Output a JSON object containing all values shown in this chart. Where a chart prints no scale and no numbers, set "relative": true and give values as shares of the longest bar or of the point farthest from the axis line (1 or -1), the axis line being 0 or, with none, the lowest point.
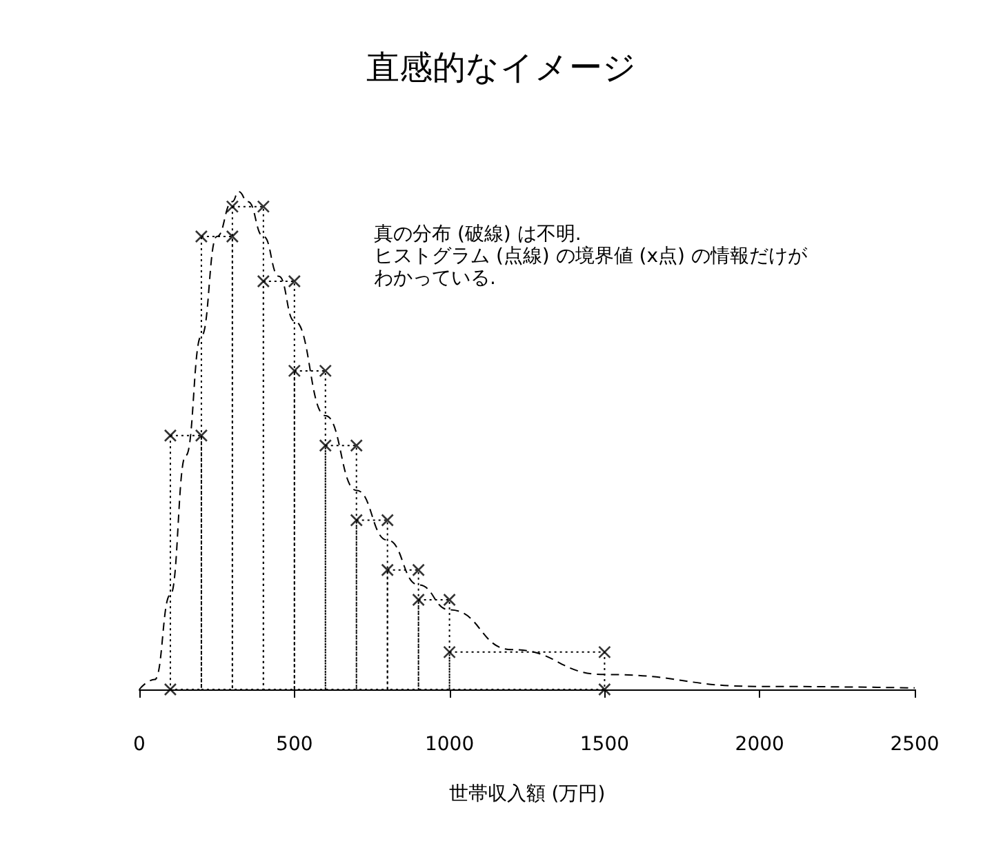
{
  "chart_data": {
    "type": "histogram",
    "title": "直感的なイメージ",
    "xlabel": "世帯収入額 (万円)",
    "relative": true,
    "annotations": [
      "真の分布 (破線) は不明.",
      "ヒストグラム (点線) の境界値 (x点) の情報だけが",
      "わかっている."
    ],
    "xlim": [
      0,
      2500
    ],
    "xticks": [
      0,
      500,
      1000,
      1500,
      2000,
      2500
    ],
    "grid": false,
    "tick_labels": "x",
    "series": [
      {
        "color": "#000000",
        "line_style": "dotted",
        "bins": [
          100,
          200,
          300,
          400,
          500,
          600,
          700,
          800,
          900,
          1000,
          1500
        ],
        "values": [
          0.51,
          0.91,
          0.97,
          0.82,
          0.64,
          0.49,
          0.34,
          0.24,
          0.18,
          0.075
        ]
      },
      {
        "type": "scatter",
        "color": "#000000",
        "marker": "cross",
        "x": [
          100,
          100,
          200,
          200,
          300,
          300,
          400,
          400,
          500,
          500,
          600,
          600,
          700,
          700,
          800,
          800,
          900,
          900,
          1000,
          1000,
          1500,
          1500
        ],
        "values": [
          0,
          0.51,
          0.51,
          0.91,
          0.91,
          0.97,
          0.97,
          0.82,
          0.82,
          0.64,
          0.64,
          0.49,
          0.49,
          0.34,
          0.34,
          0.24,
          0.24,
          0.18,
          0.18,
          0.075,
          0.075,
          0
        ]
      },
      {
        "type": "line",
        "color": "#000000",
        "line_style": "dashed",
        "marker": "none",
        "x": [
          0,
          50,
          100,
          150,
          200,
          250,
          300,
          320,
          350,
          400,
          450,
          500,
          600,
          700,
          800,
          900,
          1000,
          1200,
          1500,
          2000,
          2500
        ],
        "values": [
          0,
          0.02,
          0.19,
          0.47,
          0.71,
          0.91,
          0.98,
          1.0,
          0.98,
          0.91,
          0.83,
          0.74,
          0.55,
          0.4,
          0.3,
          0.21,
          0.16,
          0.08,
          0.03,
          0.006,
          0.003
        ]
      }
    ]
  }
}
